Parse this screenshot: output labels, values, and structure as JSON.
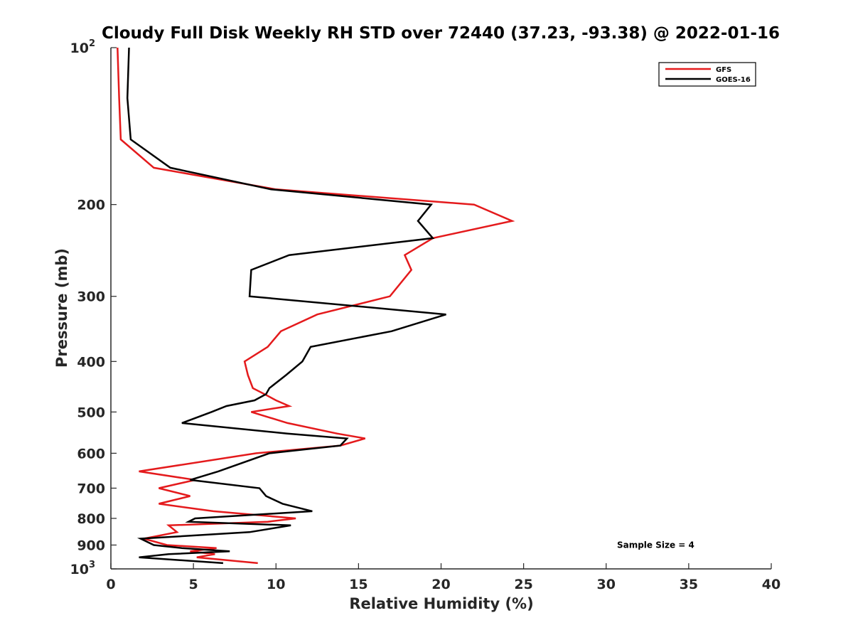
{
  "chart_data": {
    "type": "line",
    "title": "Cloudy Full Disk Weekly RH STD over 72440 (37.23, -93.38) @ 2022-01-16",
    "xlabel": "Relative Humidity (%)",
    "ylabel": "Pressure (mb)",
    "xlim": [
      0,
      40
    ],
    "ylim": [
      100,
      1000
    ],
    "y_scale": "log",
    "y_reversed": true,
    "grid": false,
    "x_ticks": [
      0,
      5,
      10,
      15,
      20,
      25,
      30,
      35,
      40
    ],
    "x_tick_labels": [
      "0",
      "5",
      "10",
      "15",
      "20",
      "25",
      "30",
      "35",
      "40"
    ],
    "y_ticks": [
      {
        "value": 100,
        "base": "10",
        "exp": "2"
      },
      {
        "value": 200,
        "label": "200"
      },
      {
        "value": 300,
        "label": "300"
      },
      {
        "value": 400,
        "label": "400"
      },
      {
        "value": 500,
        "label": "500"
      },
      {
        "value": 600,
        "label": "600"
      },
      {
        "value": 700,
        "label": "700"
      },
      {
        "value": 800,
        "label": "800"
      },
      {
        "value": 900,
        "label": "900"
      },
      {
        "value": 1000,
        "base": "10",
        "exp": "3"
      }
    ],
    "legend": {
      "position": "top-right"
    },
    "series": [
      {
        "name": "GFS",
        "color": "#e41a1c",
        "points": [
          [
            0.4,
            100
          ],
          [
            0.5,
            125
          ],
          [
            0.6,
            150
          ],
          [
            2.6,
            170
          ],
          [
            10,
            187
          ],
          [
            22,
            200
          ],
          [
            24.3,
            215
          ],
          [
            19.5,
            232
          ],
          [
            17.8,
            250
          ],
          [
            18.2,
            267
          ],
          [
            16.9,
            300
          ],
          [
            12.5,
            325
          ],
          [
            10.3,
            350
          ],
          [
            9.5,
            375
          ],
          [
            8.1,
            400
          ],
          [
            8.3,
            425
          ],
          [
            8.6,
            450
          ],
          [
            9.3,
            462
          ],
          [
            10,
            475
          ],
          [
            10.8,
            487
          ],
          [
            8.5,
            500
          ],
          [
            10.7,
            525
          ],
          [
            13.7,
            550
          ],
          [
            15.4,
            562
          ],
          [
            13.9,
            580
          ],
          [
            8.8,
            600
          ],
          [
            1.7,
            650
          ],
          [
            5.1,
            675
          ],
          [
            2.9,
            700
          ],
          [
            4.8,
            725
          ],
          [
            2.9,
            750
          ],
          [
            6.2,
            775
          ],
          [
            11.2,
            800
          ],
          [
            9.5,
            812
          ],
          [
            3.5,
            825
          ],
          [
            4,
            850
          ],
          [
            2,
            875
          ],
          [
            3.4,
            900
          ],
          [
            6.4,
            912
          ],
          [
            4.8,
            925
          ],
          [
            6.3,
            937
          ],
          [
            5.2,
            950
          ],
          [
            8.9,
            975
          ]
        ]
      },
      {
        "name": "GOES-16",
        "color": "#000000",
        "points": [
          [
            1.1,
            100
          ],
          [
            1,
            125
          ],
          [
            1.2,
            150
          ],
          [
            3.6,
            170
          ],
          [
            9.7,
            187
          ],
          [
            19.4,
            200
          ],
          [
            18.6,
            215
          ],
          [
            19.5,
            232
          ],
          [
            10.8,
            250
          ],
          [
            8.5,
            267
          ],
          [
            8.4,
            300
          ],
          [
            20.3,
            325
          ],
          [
            17,
            350
          ],
          [
            12.1,
            375
          ],
          [
            11.6,
            400
          ],
          [
            10.6,
            425
          ],
          [
            9.6,
            450
          ],
          [
            9.4,
            462
          ],
          [
            8.7,
            475
          ],
          [
            7,
            487
          ],
          [
            6.1,
            500
          ],
          [
            4.3,
            525
          ],
          [
            10.7,
            550
          ],
          [
            14.3,
            562
          ],
          [
            13.9,
            580
          ],
          [
            9.6,
            600
          ],
          [
            6.5,
            650
          ],
          [
            4.8,
            675
          ],
          [
            9,
            700
          ],
          [
            9.4,
            725
          ],
          [
            10.4,
            750
          ],
          [
            12.2,
            775
          ],
          [
            5.1,
            800
          ],
          [
            4.7,
            812
          ],
          [
            10.9,
            825
          ],
          [
            8.4,
            850
          ],
          [
            1.8,
            875
          ],
          [
            2.6,
            900
          ],
          [
            4.3,
            912
          ],
          [
            7.2,
            925
          ],
          [
            3.5,
            937
          ],
          [
            1.7,
            950
          ],
          [
            6.8,
            975
          ]
        ]
      }
    ],
    "annotations": [
      {
        "text": "Sample Size = 4",
        "x": 33,
        "y": 920
      }
    ]
  }
}
